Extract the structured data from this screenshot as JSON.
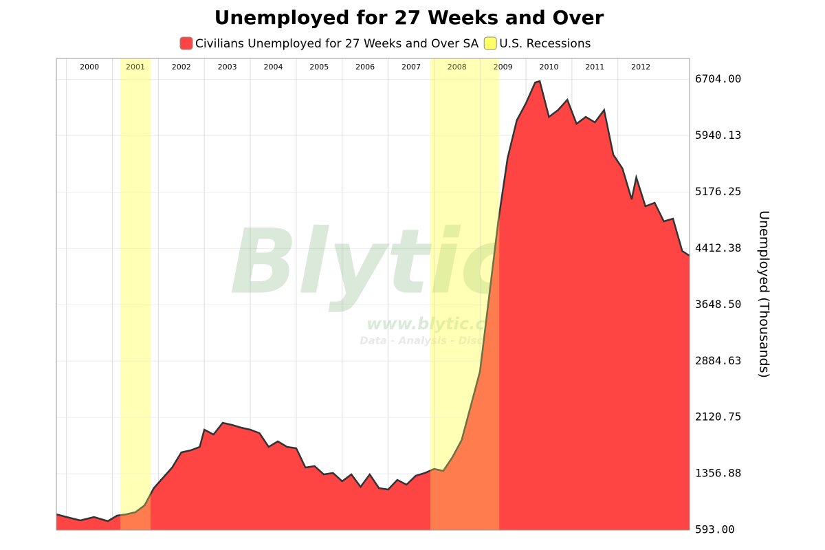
{
  "chart_data": {
    "type": "area",
    "title": "Unemployed for 27 Weeks and Over",
    "y_label": "Unemployed (Thousands)",
    "watermark": "Blytic",
    "watermark_url": "www.blytic.com",
    "watermark_tagline": "Data - Analysis - Discussion",
    "x": [
      1999.78,
      2000.0,
      2000.3,
      2000.6,
      2000.9,
      2001.1,
      2001.3,
      2001.5,
      2001.7,
      2001.9,
      2002.1,
      2002.3,
      2002.5,
      2002.7,
      2002.9,
      2003.0,
      2003.2,
      2003.4,
      2003.6,
      2003.8,
      2004.0,
      2004.2,
      2004.4,
      2004.6,
      2004.8,
      2005.0,
      2005.2,
      2005.4,
      2005.6,
      2005.8,
      2006.0,
      2006.2,
      2006.4,
      2006.6,
      2006.8,
      2007.0,
      2007.2,
      2007.4,
      2007.6,
      2007.8,
      2008.0,
      2008.2,
      2008.4,
      2008.6,
      2008.8,
      2009.0,
      2009.2,
      2009.4,
      2009.6,
      2009.8,
      2010.0,
      2010.2,
      2010.3,
      2010.5,
      2010.7,
      2010.9,
      2011.1,
      2011.3,
      2011.5,
      2011.7,
      2011.9,
      2012.1,
      2012.3,
      2012.4,
      2012.6,
      2012.8,
      2013.0,
      2013.2,
      2013.4,
      2013.56
    ],
    "series": [
      {
        "name": "Civilians Unemployed for 27 Weeks and Over SA",
        "color": "#ff4444",
        "line_color": "#333333",
        "values": [
          807,
          770,
          724,
          770,
          714,
          789,
          807,
          835,
          929,
          1162,
          1302,
          1442,
          1647,
          1675,
          1721,
          1954,
          1889,
          2048,
          2020,
          1982,
          1954,
          1908,
          1721,
          1796,
          1721,
          1703,
          1442,
          1460,
          1348,
          1367,
          1255,
          1348,
          1180,
          1348,
          1162,
          1143,
          1274,
          1208,
          1330,
          1367,
          1423,
          1395,
          1581,
          1815,
          2281,
          2747,
          3773,
          4799,
          5638,
          6151,
          6384,
          6664,
          6682,
          6197,
          6291,
          6430,
          6104,
          6197,
          6123,
          6291,
          5684,
          5498,
          5078,
          5377,
          4985,
          5032,
          4780,
          4817,
          4379,
          4314
        ]
      }
    ],
    "recessions": {
      "name": "U.S. Recessions",
      "color": "#ffff66",
      "ranges": [
        [
          2001.17,
          2001.83
        ],
        [
          2007.92,
          2009.42
        ]
      ]
    },
    "xlim": [
      1999.78,
      2013.56
    ],
    "xticks": [
      2000,
      2001,
      2002,
      2003,
      2004,
      2005,
      2006,
      2007,
      2008,
      2009,
      2010,
      2011,
      2012
    ],
    "ylim": [
      593,
      6990
    ],
    "yticks": [
      {
        "value": 593,
        "label": "593.00"
      },
      {
        "value": 1356.88,
        "label": "1356.88"
      },
      {
        "value": 2120.75,
        "label": "2120.75"
      },
      {
        "value": 2884.63,
        "label": "2884.63"
      },
      {
        "value": 3648.5,
        "label": "3648.50"
      },
      {
        "value": 4412.38,
        "label": "4412.38"
      },
      {
        "value": 5176.25,
        "label": "5176.25"
      },
      {
        "value": 5940.13,
        "label": "5940.13"
      },
      {
        "value": 6704,
        "label": "6704.00"
      }
    ],
    "y_axis_side": "right",
    "grid": true
  }
}
